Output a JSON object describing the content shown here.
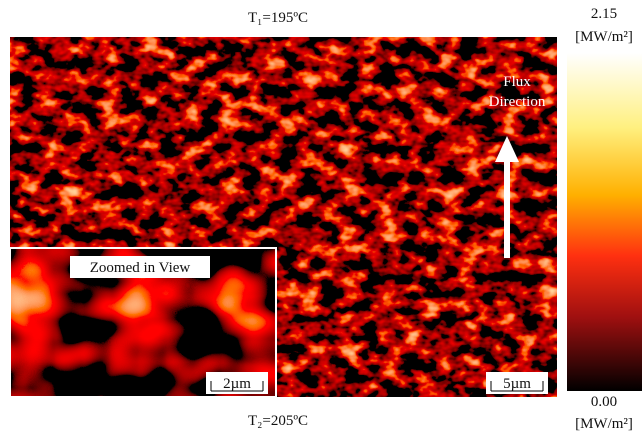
{
  "figure": {
    "top_label": "T₁=195ºC",
    "bottom_label": "T₂=205ºC",
    "flux_label": [
      "Flux",
      "Direction"
    ],
    "inset_label": "Zoomed in View",
    "inset_scale": "2µm",
    "main_scale": "5µm",
    "colorbar": {
      "max_label": "2.15",
      "min_label": "0.00",
      "unit": "[MW/m²]"
    }
  }
}
